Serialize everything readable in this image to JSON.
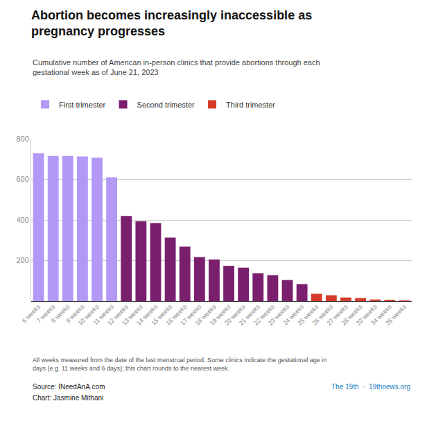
{
  "chart_data": {
    "type": "bar",
    "title": "Abortion becomes increasingly inaccessible as\npregnancy progresses",
    "subtitle": "Cumulative number of American in-person clinics that provide abortions through each\ngestational week as of June 21, 2023",
    "categories": [
      "6 weeks",
      "7 weeks",
      "8 weeks",
      "9 weeks",
      "10 weeks",
      "11 weeks",
      "12 weeks",
      "13 weeks",
      "14 weeks",
      "15 weeks",
      "16 weeks",
      "17 weeks",
      "18 weeks",
      "19 weeks",
      "20 weeks",
      "21 weeks",
      "22 weeks",
      "23 weeks",
      "24 weeks",
      "25 weeks",
      "26 weeks",
      "27 weeks",
      "28 weeks",
      "32 weeks",
      "34 weeks",
      "36 weeks"
    ],
    "series": [
      {
        "name": "First trimester",
        "color": "#b399f5",
        "values": [
          728,
          715,
          715,
          713,
          707,
          610,
          null,
          null,
          null,
          null,
          null,
          null,
          null,
          null,
          null,
          null,
          null,
          null,
          null,
          null,
          null,
          null,
          null,
          null,
          null,
          null
        ]
      },
      {
        "name": "Second trimester",
        "color": "#7a1f6e",
        "values": [
          null,
          null,
          null,
          null,
          null,
          null,
          420,
          393,
          385,
          313,
          268,
          217,
          205,
          174,
          165,
          137,
          128,
          104,
          84,
          null,
          null,
          null,
          null,
          null,
          null,
          null
        ]
      },
      {
        "name": "Third trimester",
        "color": "#d63b2a",
        "values": [
          null,
          null,
          null,
          null,
          null,
          null,
          null,
          null,
          null,
          null,
          null,
          null,
          null,
          null,
          null,
          null,
          null,
          null,
          null,
          36,
          29,
          18,
          15,
          8,
          4,
          2
        ]
      }
    ],
    "ylim": [
      0,
      800
    ],
    "yticks": [
      200,
      400,
      600,
      800
    ],
    "grid": true,
    "legend": "top",
    "footnote": "All weeks measured from the date of the last menstrual period. Some clinics indicate the gestational age in\ndays (e.g. 11 weeks and 6 days); this chart rounds to the nearest week.",
    "annotations": [
      "Source: INeedAnA.com",
      "Chart: Jasmine Mithani",
      "The 19th  ·  19thnews.org"
    ]
  }
}
